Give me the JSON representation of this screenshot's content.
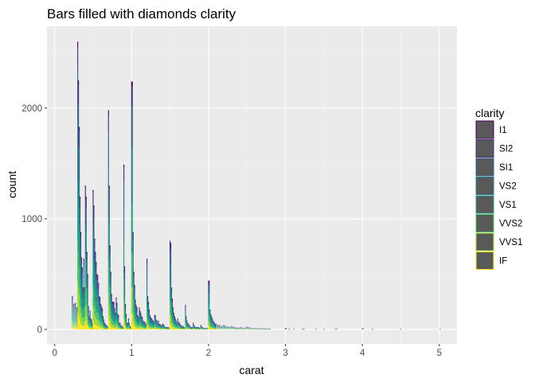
{
  "chart_data": {
    "type": "bar",
    "title": "Bars filled with diamonds clarity",
    "xlabel": "carat",
    "ylabel": "count",
    "xlim": [
      -0.1,
      5.23
    ],
    "ylim": [
      -130,
      2740
    ],
    "x_ticks": [
      0,
      1,
      2,
      3,
      4,
      5
    ],
    "y_ticks": [
      0,
      1000,
      2000
    ],
    "x_tick_labels": [
      "0",
      "1",
      "2",
      "3",
      "4",
      "5"
    ],
    "y_tick_labels": [
      "0",
      "1000",
      "2000"
    ],
    "grid": true,
    "legend_placement": "right",
    "stacked": true,
    "legend": {
      "title": "clarity",
      "items": [
        {
          "label": "I1",
          "color": "#440154"
        },
        {
          "label": "SI2",
          "color": "#46337E"
        },
        {
          "label": "SI1",
          "color": "#365C8D"
        },
        {
          "label": "VS2",
          "color": "#277F8E"
        },
        {
          "label": "VS1",
          "color": "#1FA187"
        },
        {
          "label": "VVS2",
          "color": "#4AC16D"
        },
        {
          "label": "VVS1",
          "color": "#9FDA3A"
        },
        {
          "label": "IF",
          "color": "#FDE725"
        }
      ]
    },
    "series_order": [
      "IF",
      "VVS1",
      "VVS2",
      "VS1",
      "VS2",
      "SI1",
      "SI2",
      "I1"
    ],
    "series_fractions": [
      0.06,
      0.11,
      0.14,
      0.2,
      0.22,
      0.17,
      0.08,
      0.02
    ],
    "approx_totals": [
      [
        0.23,
        300
      ],
      [
        0.25,
        230
      ],
      [
        0.27,
        240
      ],
      [
        0.29,
        200
      ],
      [
        0.3,
        2600
      ],
      [
        0.31,
        2250
      ],
      [
        0.32,
        1830
      ],
      [
        0.33,
        1200
      ],
      [
        0.34,
        880
      ],
      [
        0.35,
        650
      ],
      [
        0.36,
        560
      ],
      [
        0.37,
        380
      ],
      [
        0.38,
        640
      ],
      [
        0.39,
        380
      ],
      [
        0.4,
        1300
      ],
      [
        0.41,
        1200
      ],
      [
        0.42,
        700
      ],
      [
        0.43,
        500
      ],
      [
        0.44,
        210
      ],
      [
        0.45,
        120
      ],
      [
        0.46,
        170
      ],
      [
        0.47,
        100
      ],
      [
        0.48,
        90
      ],
      [
        0.49,
        60
      ],
      [
        0.5,
        1260
      ],
      [
        0.51,
        1120
      ],
      [
        0.52,
        820
      ],
      [
        0.53,
        700
      ],
      [
        0.54,
        610
      ],
      [
        0.55,
        500
      ],
      [
        0.56,
        490
      ],
      [
        0.57,
        420
      ],
      [
        0.58,
        300
      ],
      [
        0.59,
        290
      ],
      [
        0.6,
        230
      ],
      [
        0.61,
        210
      ],
      [
        0.62,
        190
      ],
      [
        0.63,
        120
      ],
      [
        0.64,
        90
      ],
      [
        0.65,
        60
      ],
      [
        0.66,
        50
      ],
      [
        0.67,
        40
      ],
      [
        0.68,
        30
      ],
      [
        0.69,
        30
      ],
      [
        0.7,
        1980
      ],
      [
        0.71,
        1300
      ],
      [
        0.72,
        760
      ],
      [
        0.73,
        520
      ],
      [
        0.74,
        320
      ],
      [
        0.75,
        250
      ],
      [
        0.76,
        250
      ],
      [
        0.77,
        250
      ],
      [
        0.78,
        190
      ],
      [
        0.79,
        150
      ],
      [
        0.8,
        290
      ],
      [
        0.81,
        240
      ],
      [
        0.82,
        140
      ],
      [
        0.83,
        130
      ],
      [
        0.84,
        60
      ],
      [
        0.85,
        60
      ],
      [
        0.86,
        40
      ],
      [
        0.87,
        30
      ],
      [
        0.88,
        30
      ],
      [
        0.89,
        20
      ],
      [
        0.9,
        1490
      ],
      [
        0.91,
        570
      ],
      [
        0.92,
        230
      ],
      [
        0.93,
        140
      ],
      [
        0.94,
        60
      ],
      [
        0.95,
        60
      ],
      [
        0.96,
        100
      ],
      [
        0.97,
        60
      ],
      [
        0.98,
        30
      ],
      [
        0.99,
        20
      ],
      [
        1.0,
        2240
      ],
      [
        1.01,
        2240
      ],
      [
        1.02,
        880
      ],
      [
        1.03,
        520
      ],
      [
        1.04,
        400
      ],
      [
        1.05,
        270
      ],
      [
        1.06,
        220
      ],
      [
        1.07,
        200
      ],
      [
        1.08,
        130
      ],
      [
        1.09,
        110
      ],
      [
        1.1,
        200
      ],
      [
        1.11,
        170
      ],
      [
        1.12,
        150
      ],
      [
        1.13,
        120
      ],
      [
        1.14,
        110
      ],
      [
        1.15,
        80
      ],
      [
        1.16,
        70
      ],
      [
        1.17,
        70
      ],
      [
        1.18,
        60
      ],
      [
        1.19,
        50
      ],
      [
        1.2,
        640
      ],
      [
        1.21,
        300
      ],
      [
        1.22,
        250
      ],
      [
        1.23,
        180
      ],
      [
        1.24,
        130
      ],
      [
        1.25,
        110
      ],
      [
        1.26,
        100
      ],
      [
        1.27,
        90
      ],
      [
        1.28,
        80
      ],
      [
        1.29,
        70
      ],
      [
        1.3,
        130
      ],
      [
        1.31,
        130
      ],
      [
        1.32,
        90
      ],
      [
        1.33,
        80
      ],
      [
        1.34,
        60
      ],
      [
        1.35,
        80
      ],
      [
        1.36,
        50
      ],
      [
        1.37,
        50
      ],
      [
        1.38,
        40
      ],
      [
        1.39,
        30
      ],
      [
        1.4,
        50
      ],
      [
        1.41,
        50
      ],
      [
        1.42,
        40
      ],
      [
        1.43,
        30
      ],
      [
        1.44,
        20
      ],
      [
        1.45,
        20
      ],
      [
        1.46,
        20
      ],
      [
        1.47,
        20
      ],
      [
        1.48,
        20
      ],
      [
        1.49,
        10
      ],
      [
        1.5,
        800
      ],
      [
        1.51,
        780
      ],
      [
        1.52,
        380
      ],
      [
        1.53,
        280
      ],
      [
        1.54,
        200
      ],
      [
        1.55,
        150
      ],
      [
        1.56,
        120
      ],
      [
        1.57,
        100
      ],
      [
        1.58,
        80
      ],
      [
        1.59,
        60
      ],
      [
        1.6,
        100
      ],
      [
        1.61,
        70
      ],
      [
        1.62,
        60
      ],
      [
        1.63,
        50
      ],
      [
        1.64,
        40
      ],
      [
        1.65,
        30
      ],
      [
        1.66,
        30
      ],
      [
        1.67,
        30
      ],
      [
        1.68,
        20
      ],
      [
        1.69,
        20
      ],
      [
        1.7,
        220
      ],
      [
        1.71,
        120
      ],
      [
        1.72,
        80
      ],
      [
        1.73,
        60
      ],
      [
        1.74,
        50
      ],
      [
        1.75,
        40
      ],
      [
        1.76,
        30
      ],
      [
        1.77,
        20
      ],
      [
        1.78,
        20
      ],
      [
        1.79,
        20
      ],
      [
        1.8,
        60
      ],
      [
        1.81,
        40
      ],
      [
        1.82,
        30
      ],
      [
        1.83,
        20
      ],
      [
        1.84,
        20
      ],
      [
        1.85,
        20
      ],
      [
        1.86,
        20
      ],
      [
        1.87,
        20
      ],
      [
        1.88,
        15
      ],
      [
        1.89,
        15
      ],
      [
        1.9,
        40
      ],
      [
        1.91,
        30
      ],
      [
        1.92,
        20
      ],
      [
        1.93,
        15
      ],
      [
        1.94,
        10
      ],
      [
        1.95,
        10
      ],
      [
        1.96,
        10
      ],
      [
        1.97,
        10
      ],
      [
        1.98,
        10
      ],
      [
        1.99,
        10
      ],
      [
        2.0,
        440
      ],
      [
        2.01,
        440
      ],
      [
        2.02,
        180
      ],
      [
        2.03,
        140
      ],
      [
        2.04,
        120
      ],
      [
        2.05,
        100
      ],
      [
        2.06,
        80
      ],
      [
        2.07,
        70
      ],
      [
        2.08,
        60
      ],
      [
        2.09,
        50
      ],
      [
        2.1,
        50
      ],
      [
        2.12,
        40
      ],
      [
        2.14,
        40
      ],
      [
        2.16,
        30
      ],
      [
        2.18,
        30
      ],
      [
        2.2,
        40
      ],
      [
        2.22,
        30
      ],
      [
        2.24,
        25
      ],
      [
        2.26,
        25
      ],
      [
        2.28,
        20
      ],
      [
        2.3,
        30
      ],
      [
        2.32,
        25
      ],
      [
        2.34,
        20
      ],
      [
        2.36,
        15
      ],
      [
        2.38,
        15
      ],
      [
        2.4,
        15
      ],
      [
        2.42,
        20
      ],
      [
        2.44,
        15
      ],
      [
        2.46,
        10
      ],
      [
        2.48,
        15
      ],
      [
        2.5,
        25
      ],
      [
        2.52,
        20
      ],
      [
        2.54,
        15
      ],
      [
        2.56,
        10
      ],
      [
        2.58,
        10
      ],
      [
        2.6,
        10
      ],
      [
        2.62,
        8
      ],
      [
        2.64,
        8
      ],
      [
        2.66,
        8
      ],
      [
        2.68,
        8
      ],
      [
        2.7,
        10
      ],
      [
        2.72,
        8
      ],
      [
        2.74,
        8
      ],
      [
        2.76,
        6
      ],
      [
        2.78,
        6
      ],
      [
        2.8,
        6
      ],
      [
        3.0,
        12
      ],
      [
        3.01,
        14
      ],
      [
        3.05,
        6
      ],
      [
        3.11,
        5
      ],
      [
        3.22,
        4
      ],
      [
        3.24,
        4
      ],
      [
        3.4,
        4
      ],
      [
        3.5,
        4
      ],
      [
        3.65,
        4
      ],
      [
        3.67,
        4
      ],
      [
        4.0,
        10
      ],
      [
        4.01,
        12
      ],
      [
        4.13,
        6
      ],
      [
        4.5,
        4
      ],
      [
        5.01,
        4
      ]
    ]
  }
}
